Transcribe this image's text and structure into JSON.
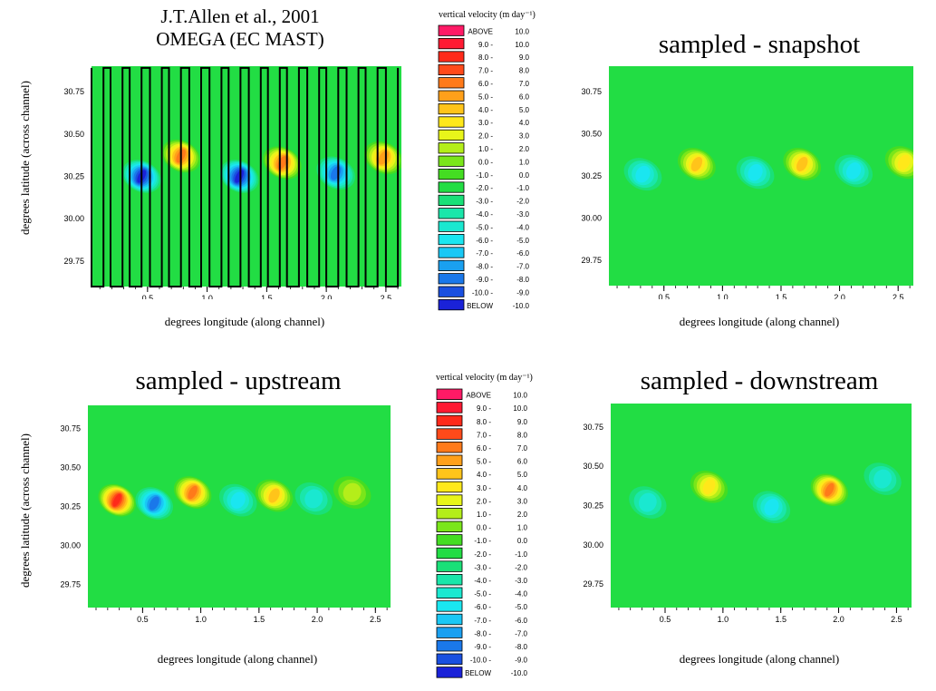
{
  "header": {
    "title_line1": "J.T.Allen et al., 2001",
    "title_line2": "OMEGA (EC MAST)"
  },
  "legend": {
    "title": "vertical velocity (m day⁻¹)",
    "rows": [
      {
        "lo": "ABOVE",
        "hi": "10.0",
        "color": "#ff1a66"
      },
      {
        "lo": "9.0 -",
        "hi": "10.0",
        "color": "#ff1a33"
      },
      {
        "lo": "8.0 -",
        "hi": "9.0",
        "color": "#ff2a1a"
      },
      {
        "lo": "7.0 -",
        "hi": "8.0",
        "color": "#ff4a1a"
      },
      {
        "lo": "6.0 -",
        "hi": "7.0",
        "color": "#ff7a1a"
      },
      {
        "lo": "5.0 -",
        "hi": "6.0",
        "color": "#ffa01a"
      },
      {
        "lo": "4.0 -",
        "hi": "5.0",
        "color": "#ffc41a"
      },
      {
        "lo": "3.0 -",
        "hi": "4.0",
        "color": "#ffe81a"
      },
      {
        "lo": "2.0 -",
        "hi": "3.0",
        "color": "#e8f51a"
      },
      {
        "lo": "1.0 -",
        "hi": "2.0",
        "color": "#b4ee1a"
      },
      {
        "lo": "0.0 -",
        "hi": "1.0",
        "color": "#7ae61a"
      },
      {
        "lo": "-1.0 -",
        "hi": "0.0",
        "color": "#44dd22"
      },
      {
        "lo": "-2.0 -",
        "hi": "-1.0",
        "color": "#22dd44"
      },
      {
        "lo": "-3.0 -",
        "hi": "-2.0",
        "color": "#1ae078"
      },
      {
        "lo": "-4.0 -",
        "hi": "-3.0",
        "color": "#1ae6aa"
      },
      {
        "lo": "-5.0 -",
        "hi": "-4.0",
        "color": "#1ae8d0"
      },
      {
        "lo": "-6.0 -",
        "hi": "-5.0",
        "color": "#1ae6f0"
      },
      {
        "lo": "-7.0 -",
        "hi": "-6.0",
        "color": "#1ac8f5"
      },
      {
        "lo": "-8.0 -",
        "hi": "-7.0",
        "color": "#1aa0f0"
      },
      {
        "lo": "-9.0 -",
        "hi": "-8.0",
        "color": "#1a78ea"
      },
      {
        "lo": "-10.0 -",
        "hi": "-9.0",
        "color": "#1a50e0"
      },
      {
        "lo": "BELOW",
        "hi": "-10.0",
        "color": "#1a22d8"
      }
    ]
  },
  "chart_data": [
    {
      "type": "heatmap",
      "title": "J.T.Allen et al., 2001 OMEGA (EC MAST)",
      "xlabel": "degrees longitude (along channel)",
      "ylabel": "degrees latitude (across channel)",
      "xlim": [
        0.03,
        2.63
      ],
      "ylim": [
        29.6,
        30.9
      ],
      "xticks": [
        "0.5",
        "1.0",
        "1.5",
        "2.0",
        "2.5"
      ],
      "yticks": [
        "29.75",
        "30.00",
        "30.25",
        "30.50",
        "30.75"
      ],
      "background_value": -1.5,
      "features": [
        {
          "x": 0.45,
          "y": 30.25,
          "value": -10.5
        },
        {
          "x": 0.78,
          "y": 30.37,
          "value": 6.5
        },
        {
          "x": 1.27,
          "y": 30.25,
          "value": -10.5
        },
        {
          "x": 1.63,
          "y": 30.33,
          "value": 6.5
        },
        {
          "x": 2.08,
          "y": 30.27,
          "value": -8.0
        },
        {
          "x": 2.48,
          "y": 30.36,
          "value": 5.5
        }
      ],
      "ship_track": {
        "x": [
          0.03,
          0.03,
          0.13,
          0.13,
          0.19,
          0.19,
          0.29,
          0.29,
          0.35,
          0.35,
          0.45,
          0.45,
          0.52,
          0.52,
          0.62,
          0.62,
          0.68,
          0.68,
          0.78,
          0.78,
          0.85,
          0.85,
          0.95,
          0.95,
          1.02,
          1.02,
          1.12,
          1.12,
          1.18,
          1.18,
          1.28,
          1.28,
          1.35,
          1.35,
          1.45,
          1.45,
          1.51,
          1.51,
          1.61,
          1.61,
          1.67,
          1.67,
          1.77,
          1.77,
          1.84,
          1.84,
          1.94,
          1.94,
          2.0,
          2.0,
          2.1,
          2.1,
          2.17,
          2.17,
          2.27,
          2.27,
          2.33,
          2.33,
          2.43,
          2.43,
          2.5,
          2.5,
          2.6,
          2.6
        ],
        "y": [
          30.89,
          29.6,
          29.6,
          30.89,
          30.89,
          29.6,
          29.6,
          30.89,
          30.89,
          29.6,
          29.6,
          30.89,
          30.89,
          29.6,
          29.6,
          30.89,
          30.89,
          29.6,
          29.6,
          30.89,
          30.89,
          29.6,
          29.6,
          30.89,
          30.89,
          29.6,
          29.6,
          30.89,
          30.89,
          29.6,
          29.6,
          30.89,
          30.89,
          29.6,
          29.6,
          30.89,
          30.89,
          29.6,
          29.6,
          30.89,
          30.89,
          29.6,
          29.6,
          30.89,
          30.89,
          29.6,
          29.6,
          30.89,
          30.89,
          29.6,
          29.6,
          30.89,
          30.89,
          29.6,
          29.6,
          30.89,
          30.89,
          29.6,
          29.6,
          30.89,
          30.89,
          29.6,
          29.6,
          30.89
        ]
      }
    },
    {
      "type": "heatmap",
      "title": "sampled - snapshot",
      "xlabel": "degrees longitude (along channel)",
      "ylabel": "",
      "xlim": [
        0.03,
        2.63
      ],
      "ylim": [
        29.6,
        30.9
      ],
      "xticks": [
        "0.5",
        "1.0",
        "1.5",
        "2.0",
        "2.5"
      ],
      "yticks": [
        "29.75",
        "30.00",
        "30.25",
        "30.50",
        "30.75"
      ],
      "background_value": -1.5,
      "features": [
        {
          "x": 0.32,
          "y": 30.26,
          "value": -5.5
        },
        {
          "x": 0.78,
          "y": 30.32,
          "value": 4.5
        },
        {
          "x": 1.28,
          "y": 30.27,
          "value": -5.5
        },
        {
          "x": 1.68,
          "y": 30.32,
          "value": 4.5
        },
        {
          "x": 2.12,
          "y": 30.28,
          "value": -5.0
        },
        {
          "x": 2.55,
          "y": 30.33,
          "value": 3.0
        }
      ]
    },
    {
      "type": "heatmap",
      "title": "sampled - upstream",
      "xlabel": "degrees longitude (along channel)",
      "ylabel": "degrees latitude (across channel)",
      "xlim": [
        0.03,
        2.63
      ],
      "ylim": [
        29.6,
        30.9
      ],
      "xticks": [
        "0.5",
        "1.0",
        "1.5",
        "2.0",
        "2.5"
      ],
      "yticks": [
        "29.75",
        "30.00",
        "30.25",
        "30.50",
        "30.75"
      ],
      "background_value": -1.5,
      "features": [
        {
          "x": 0.28,
          "y": 30.29,
          "value": 8.5
        },
        {
          "x": 0.6,
          "y": 30.27,
          "value": -8.5
        },
        {
          "x": 0.93,
          "y": 30.34,
          "value": 6.5
        },
        {
          "x": 1.32,
          "y": 30.29,
          "value": -5.5
        },
        {
          "x": 1.63,
          "y": 30.32,
          "value": 4.5
        },
        {
          "x": 1.97,
          "y": 30.3,
          "value": -4.0
        },
        {
          "x": 2.3,
          "y": 30.34,
          "value": 1.5
        }
      ]
    },
    {
      "type": "heatmap",
      "title": "sampled - downstream",
      "xlabel": "degrees longitude (along channel)",
      "ylabel": "",
      "xlim": [
        0.03,
        2.63
      ],
      "ylim": [
        29.6,
        30.9
      ],
      "xticks": [
        "0.5",
        "1.0",
        "1.5",
        "2.0",
        "2.5"
      ],
      "yticks": [
        "29.75",
        "30.00",
        "30.25",
        "30.50",
        "30.75"
      ],
      "background_value": -1.5,
      "features": [
        {
          "x": 0.35,
          "y": 30.27,
          "value": -4.5
        },
        {
          "x": 0.88,
          "y": 30.37,
          "value": 3.0
        },
        {
          "x": 1.42,
          "y": 30.24,
          "value": -5.0
        },
        {
          "x": 1.92,
          "y": 30.35,
          "value": 6.5
        },
        {
          "x": 2.38,
          "y": 30.42,
          "value": -4.0
        }
      ]
    }
  ]
}
